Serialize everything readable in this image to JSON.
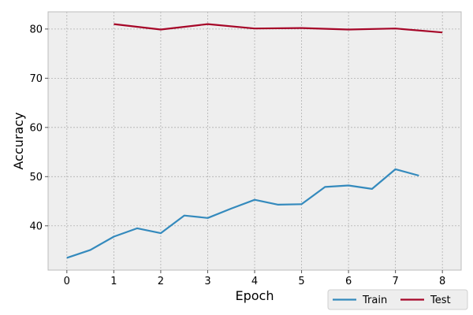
{
  "chart_data": {
    "type": "line",
    "xlabel": "Epoch",
    "ylabel": "Accuracy",
    "xlim": [
      -0.4,
      8.4
    ],
    "ylim": [
      31,
      83.5
    ],
    "xticks": [
      0,
      1,
      2,
      3,
      4,
      5,
      6,
      7,
      8
    ],
    "yticks": [
      40,
      50,
      60,
      70,
      80
    ],
    "grid": true,
    "legend_position": "bottom-right",
    "background_color": "#eeeeee",
    "grid_color": "#b0b0b0",
    "series": [
      {
        "name": "Train",
        "color": "#348abd",
        "x": [
          0,
          0.5,
          1,
          1.5,
          2,
          2.5,
          3,
          3.5,
          4,
          4.5,
          5,
          5.5,
          6,
          6.5,
          7,
          7.5
        ],
        "y": [
          33.5,
          35.1,
          37.8,
          39.5,
          38.5,
          42.1,
          41.6,
          43.5,
          45.3,
          44.3,
          44.4,
          47.9,
          48.2,
          47.5,
          51.5,
          50.2
        ]
      },
      {
        "name": "Test",
        "color": "#a60628",
        "x": [
          1,
          2,
          3,
          4,
          5,
          6,
          7,
          8
        ],
        "y": [
          81.0,
          79.9,
          81.0,
          80.1,
          80.2,
          79.9,
          80.1,
          79.3
        ]
      }
    ]
  }
}
